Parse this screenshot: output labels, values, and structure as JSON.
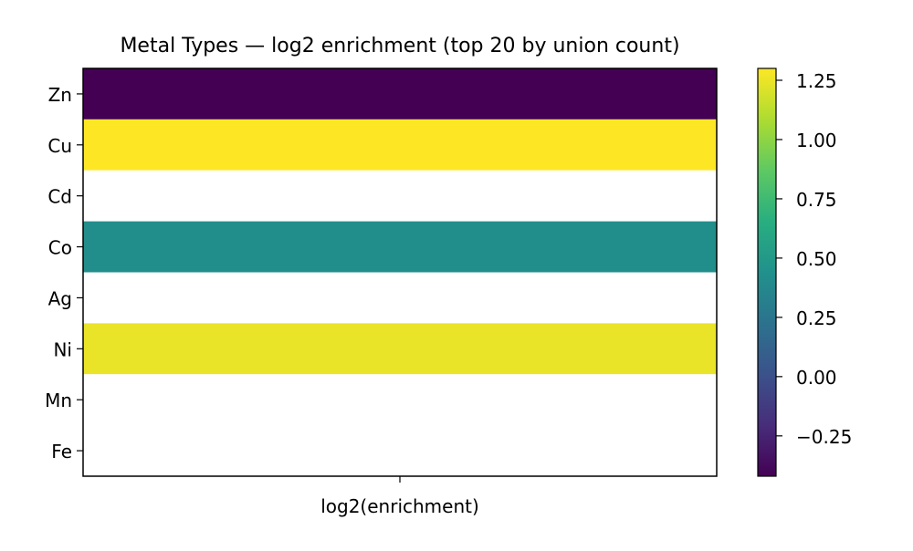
{
  "chart_data": {
    "type": "heatmap",
    "title": "Metal Types — log2 enrichment (top 20 by union count)",
    "xlabel": "",
    "ylabel": "",
    "x_categories": [
      "log2(enrichment)"
    ],
    "y_categories": [
      "Zn",
      "Cu",
      "Cd",
      "Co",
      "Ag",
      "Ni",
      "Mn",
      "Fe"
    ],
    "values": [
      -0.42,
      1.3,
      null,
      0.42,
      null,
      1.25,
      null,
      null
    ],
    "missing_color": "#ffffff",
    "colormap": "viridis",
    "colorbar": {
      "vmin": -0.42,
      "vmax": 1.3,
      "ticks": [
        -0.25,
        0.0,
        0.25,
        0.5,
        0.75,
        1.0,
        1.25
      ],
      "tick_labels": [
        "−0.25",
        "0.00",
        "0.25",
        "0.50",
        "0.75",
        "1.00",
        "1.25"
      ]
    },
    "grid": false,
    "legend": "none"
  }
}
